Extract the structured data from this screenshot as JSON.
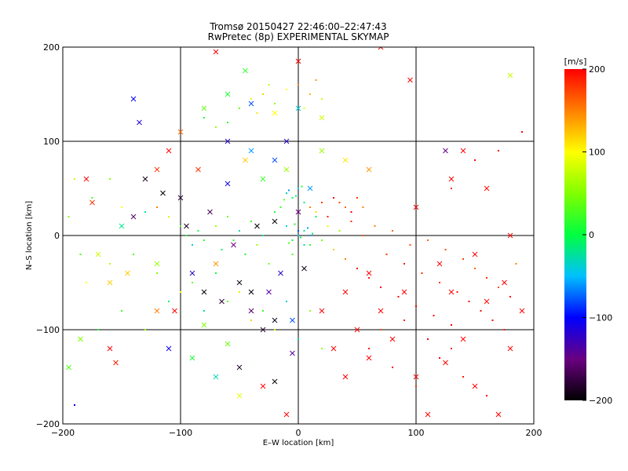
{
  "chart_data": {
    "type": "scatter",
    "title": "Tromsø 20150427 22:46:00–22:47:43",
    "subtitle": "RwPretec (8p) EXPERIMENTAL SKYMAP",
    "xlabel": "E–W location [km]",
    "ylabel": "N–S location [km]",
    "xlim": [
      -200,
      200
    ],
    "ylim": [
      -200,
      200
    ],
    "xticks": [
      -200,
      -100,
      0,
      100,
      200
    ],
    "yticks": [
      -200,
      -100,
      0,
      100,
      200
    ],
    "xtick_labels": [
      "−200",
      "−100",
      "0",
      "100",
      "200"
    ],
    "ytick_labels": [
      "−200",
      "−100",
      "0",
      "100",
      "200"
    ],
    "grid": true,
    "colorbar": {
      "label": "[m/s]",
      "min": -200,
      "max": 200,
      "ticks": [
        200,
        100,
        0,
        -100,
        -200
      ],
      "tick_labels": [
        "200",
        "100",
        "0",
        "−100",
        "−200"
      ]
    },
    "point_groups": [
      {
        "name": "dots",
        "marker": "dot",
        "points": [
          [
            -160,
            60,
            50
          ],
          [
            -175,
            40,
            20
          ],
          [
            -150,
            30,
            100
          ],
          [
            -130,
            25,
            -20
          ],
          [
            -120,
            30,
            150
          ],
          [
            -110,
            20,
            80
          ],
          [
            -100,
            10,
            30
          ],
          [
            -95,
            0,
            10
          ],
          [
            -90,
            -10,
            -40
          ],
          [
            -85,
            5,
            0
          ],
          [
            -80,
            -5,
            20
          ],
          [
            -70,
            10,
            60
          ],
          [
            -65,
            -15,
            -10
          ],
          [
            -60,
            20,
            40
          ],
          [
            -55,
            -5,
            10
          ],
          [
            -50,
            5,
            -30
          ],
          [
            -45,
            -20,
            0
          ],
          [
            -40,
            15,
            20
          ],
          [
            -35,
            -10,
            60
          ],
          [
            -30,
            0,
            -20
          ],
          [
            -25,
            -30,
            40
          ],
          [
            -20,
            25,
            10
          ],
          [
            -15,
            -40,
            80
          ],
          [
            -10,
            10,
            -50
          ],
          [
            -5,
            -20,
            30
          ],
          [
            0,
            5,
            -80
          ],
          [
            5,
            -10,
            -20
          ],
          [
            10,
            0,
            -60
          ],
          [
            15,
            20,
            -10
          ],
          [
            20,
            -5,
            40
          ],
          [
            25,
            10,
            90
          ],
          [
            30,
            -15,
            120
          ],
          [
            35,
            5,
            60
          ],
          [
            40,
            -25,
            150
          ],
          [
            45,
            15,
            180
          ],
          [
            50,
            -35,
            200
          ],
          [
            55,
            0,
            170
          ],
          [
            60,
            -45,
            190
          ],
          [
            65,
            10,
            150
          ],
          [
            70,
            -55,
            200
          ],
          [
            75,
            -20,
            180
          ],
          [
            80,
            5,
            160
          ],
          [
            85,
            -65,
            200
          ],
          [
            90,
            -30,
            190
          ],
          [
            95,
            -10,
            170
          ],
          [
            100,
            -75,
            200
          ],
          [
            105,
            -40,
            185
          ],
          [
            110,
            -5,
            160
          ],
          [
            115,
            -85,
            200
          ],
          [
            120,
            -50,
            180
          ],
          [
            125,
            -15,
            170
          ],
          [
            130,
            -95,
            200
          ],
          [
            135,
            -60,
            190
          ],
          [
            140,
            -25,
            175
          ],
          [
            145,
            -70,
            200
          ],
          [
            150,
            -35,
            160
          ],
          [
            155,
            -80,
            195
          ],
          [
            160,
            -45,
            180
          ],
          [
            165,
            -90,
            200
          ],
          [
            170,
            -55,
            170
          ],
          [
            175,
            -100,
            190
          ],
          [
            180,
            -65,
            200
          ],
          [
            185,
            -30,
            150
          ],
          [
            -40,
            145,
            90
          ],
          [
            -30,
            150,
            120
          ],
          [
            -20,
            140,
            60
          ],
          [
            -10,
            155,
            100
          ],
          [
            0,
            160,
            150
          ],
          [
            10,
            150,
            130
          ],
          [
            20,
            145,
            80
          ],
          [
            -50,
            135,
            40
          ],
          [
            -60,
            120,
            20
          ],
          [
            -70,
            115,
            60
          ],
          [
            -80,
            125,
            10
          ],
          [
            -25,
            160,
            70
          ],
          [
            -35,
            130,
            110
          ],
          [
            15,
            165,
            140
          ],
          [
            5,
            135,
            90
          ],
          [
            -10,
            45,
            -30
          ],
          [
            -5,
            40,
            0
          ],
          [
            0,
            50,
            -40
          ],
          [
            5,
            35,
            -10
          ],
          [
            -15,
            30,
            20
          ],
          [
            -8,
            48,
            -60
          ],
          [
            -2,
            42,
            -20
          ],
          [
            3,
            52,
            10
          ],
          [
            -12,
            38,
            40
          ],
          [
            10,
            30,
            150
          ],
          [
            20,
            35,
            180
          ],
          [
            30,
            40,
            200
          ],
          [
            40,
            30,
            160
          ],
          [
            15,
            25,
            120
          ],
          [
            25,
            20,
            190
          ],
          [
            35,
            35,
            170
          ],
          [
            45,
            25,
            200
          ],
          [
            50,
            40,
            180
          ],
          [
            55,
            30,
            150
          ],
          [
            0,
            0,
            -50
          ],
          [
            5,
            5,
            -30
          ],
          [
            -5,
            -5,
            -10
          ],
          [
            10,
            -10,
            20
          ],
          [
            -10,
            10,
            -40
          ],
          [
            2,
            -2,
            0
          ],
          [
            8,
            8,
            -60
          ],
          [
            -8,
            -8,
            30
          ],
          [
            12,
            2,
            -20
          ],
          [
            -3,
            12,
            10
          ],
          [
            -120,
            -40,
            50
          ],
          [
            -100,
            -60,
            100
          ],
          [
            -80,
            -80,
            -20
          ],
          [
            -60,
            -70,
            40
          ],
          [
            -40,
            -90,
            120
          ],
          [
            -20,
            -100,
            80
          ],
          [
            0,
            -110,
            -30
          ],
          [
            20,
            -120,
            60
          ],
          [
            -140,
            -20,
            30
          ],
          [
            -160,
            -30,
            70
          ],
          [
            -180,
            -50,
            100
          ],
          [
            -150,
            -80,
            20
          ],
          [
            -130,
            -100,
            60
          ],
          [
            -110,
            -70,
            -10
          ],
          [
            -90,
            -50,
            40
          ],
          [
            -70,
            -40,
            0
          ],
          [
            -50,
            -60,
            80
          ],
          [
            -30,
            -80,
            20
          ],
          [
            -10,
            -70,
            -40
          ],
          [
            10,
            -80,
            60
          ],
          [
            60,
            -120,
            190
          ],
          [
            80,
            -140,
            200
          ],
          [
            100,
            -160,
            180
          ],
          [
            120,
            -130,
            200
          ],
          [
            140,
            -150,
            190
          ],
          [
            160,
            -170,
            200
          ],
          [
            70,
            -100,
            170
          ],
          [
            90,
            -90,
            190
          ],
          [
            110,
            -110,
            200
          ],
          [
            130,
            -120,
            185
          ],
          [
            -190,
            -180,
            -100
          ],
          [
            -170,
            -100,
            10
          ],
          [
            -195,
            20,
            50
          ],
          [
            -185,
            -20,
            30
          ],
          [
            -190,
            60,
            80
          ],
          [
            180,
            170,
            50
          ],
          [
            190,
            110,
            200
          ],
          [
            170,
            90,
            190
          ],
          [
            150,
            80,
            200
          ],
          [
            130,
            50,
            180
          ]
        ]
      },
      {
        "name": "crosses",
        "marker": "x",
        "points": [
          [
            -180,
            60,
            200
          ],
          [
            -160,
            -120,
            200
          ],
          [
            -155,
            -135,
            190
          ],
          [
            -175,
            35,
            180
          ],
          [
            -145,
            -40,
            120
          ],
          [
            -140,
            20,
            -160
          ],
          [
            -130,
            60,
            -190
          ],
          [
            -110,
            90,
            200
          ],
          [
            -115,
            45,
            -200
          ],
          [
            -105,
            -80,
            200
          ],
          [
            -120,
            -30,
            60
          ],
          [
            -100,
            40,
            -180
          ],
          [
            -95,
            10,
            -190
          ],
          [
            -90,
            -40,
            -120
          ],
          [
            -85,
            70,
            180
          ],
          [
            -80,
            -60,
            -200
          ],
          [
            -75,
            25,
            -170
          ],
          [
            -70,
            -30,
            140
          ],
          [
            -65,
            -70,
            -180
          ],
          [
            -60,
            55,
            -110
          ],
          [
            -55,
            -10,
            -150
          ],
          [
            -50,
            -50,
            -190
          ],
          [
            -45,
            80,
            120
          ],
          [
            -40,
            -80,
            -160
          ],
          [
            -35,
            10,
            -200
          ],
          [
            -30,
            -100,
            -180
          ],
          [
            -25,
            -60,
            -140
          ],
          [
            -20,
            15,
            -200
          ],
          [
            -15,
            -40,
            -120
          ],
          [
            -10,
            70,
            60
          ],
          [
            -5,
            -90,
            -80
          ],
          [
            0,
            25,
            -150
          ],
          [
            5,
            -35,
            -190
          ],
          [
            10,
            50,
            -60
          ],
          [
            -140,
            145,
            -100
          ],
          [
            -135,
            120,
            -120
          ],
          [
            -80,
            135,
            40
          ],
          [
            -60,
            150,
            10
          ],
          [
            -40,
            140,
            -80
          ],
          [
            -20,
            130,
            100
          ],
          [
            0,
            135,
            -40
          ],
          [
            20,
            125,
            80
          ],
          [
            -45,
            175,
            20
          ],
          [
            -70,
            195,
            200
          ],
          [
            0,
            185,
            200
          ],
          [
            -195,
            -140,
            30
          ],
          [
            -185,
            -110,
            50
          ],
          [
            -90,
            -130,
            10
          ],
          [
            -70,
            -150,
            -30
          ],
          [
            -50,
            -170,
            90
          ],
          [
            -30,
            -160,
            200
          ],
          [
            -10,
            -190,
            200
          ],
          [
            -20,
            -155,
            -200
          ],
          [
            -5,
            -125,
            -140
          ],
          [
            110,
            -190,
            200
          ],
          [
            100,
            -150,
            200
          ],
          [
            125,
            -135,
            200
          ],
          [
            150,
            -160,
            200
          ],
          [
            170,
            -190,
            200
          ],
          [
            140,
            -110,
            200
          ],
          [
            180,
            -120,
            200
          ],
          [
            190,
            -80,
            200
          ],
          [
            160,
            -70,
            200
          ],
          [
            175,
            -50,
            200
          ],
          [
            130,
            -60,
            200
          ],
          [
            120,
            -30,
            200
          ],
          [
            150,
            -20,
            200
          ],
          [
            180,
            0,
            200
          ],
          [
            100,
            30,
            200
          ],
          [
            130,
            60,
            200
          ],
          [
            160,
            50,
            200
          ],
          [
            140,
            90,
            200
          ],
          [
            125,
            90,
            -150
          ],
          [
            180,
            170,
            80
          ],
          [
            95,
            165,
            200
          ],
          [
            70,
            200,
            200
          ],
          [
            40,
            -150,
            200
          ],
          [
            60,
            -130,
            200
          ],
          [
            80,
            -110,
            200
          ],
          [
            30,
            -120,
            200
          ],
          [
            50,
            -100,
            200
          ],
          [
            70,
            -80,
            200
          ],
          [
            90,
            -60,
            200
          ],
          [
            20,
            -80,
            200
          ],
          [
            40,
            -60,
            200
          ],
          [
            60,
            -40,
            200
          ],
          [
            -110,
            -120,
            -110
          ],
          [
            -40,
            -60,
            -200
          ],
          [
            -20,
            -90,
            -190
          ],
          [
            -50,
            -140,
            -180
          ],
          [
            -60,
            -115,
            40
          ],
          [
            -80,
            -95,
            50
          ],
          [
            -120,
            -80,
            150
          ],
          [
            -160,
            -50,
            120
          ],
          [
            -170,
            -20,
            80
          ],
          [
            -150,
            10,
            -20
          ],
          [
            -120,
            70,
            180
          ],
          [
            -100,
            110,
            160
          ],
          [
            -60,
            100,
            -120
          ],
          [
            -40,
            90,
            -60
          ],
          [
            -20,
            80,
            -80
          ],
          [
            -30,
            60,
            20
          ],
          [
            -10,
            100,
            -120
          ],
          [
            20,
            90,
            60
          ],
          [
            40,
            80,
            110
          ],
          [
            60,
            70,
            140
          ]
        ]
      }
    ]
  }
}
